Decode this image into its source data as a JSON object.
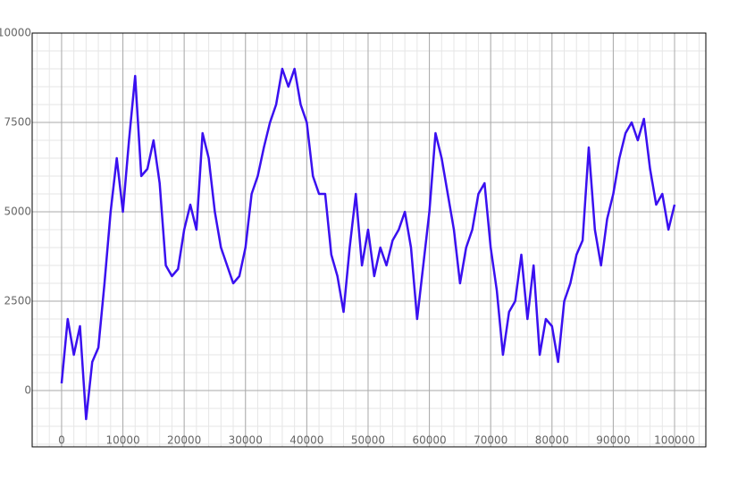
{
  "chart_data": {
    "type": "line",
    "color": "#3a10f0",
    "grid": true,
    "x": [
      0,
      1000,
      2000,
      3000,
      4000,
      5000,
      6000,
      7000,
      8000,
      9000,
      10000,
      11000,
      12000,
      13000,
      14000,
      15000,
      16000,
      17000,
      18000,
      19000,
      20000,
      21000,
      22000,
      23000,
      24000,
      25000,
      26000,
      27000,
      28000,
      29000,
      30000,
      31000,
      32000,
      33000,
      34000,
      35000,
      36000,
      37000,
      38000,
      39000,
      40000,
      41000,
      42000,
      43000,
      44000,
      45000,
      46000,
      47000,
      48000,
      49000,
      50000,
      51000,
      52000,
      53000,
      54000,
      55000,
      56000,
      57000,
      58000,
      59000,
      60000,
      61000,
      62000,
      63000,
      64000,
      65000,
      66000,
      67000,
      68000,
      69000,
      70000,
      71000,
      72000,
      73000,
      74000,
      75000,
      76000,
      77000,
      78000,
      79000,
      80000,
      81000,
      82000,
      83000,
      84000,
      85000,
      86000,
      87000,
      88000,
      89000,
      90000,
      91000,
      92000,
      93000,
      94000,
      95000,
      96000,
      97000,
      98000,
      99000,
      100000
    ],
    "values": [
      200,
      2000,
      1000,
      1800,
      -800,
      800,
      1200,
      3000,
      5000,
      6500,
      5000,
      7000,
      8800,
      6000,
      6200,
      7000,
      5800,
      3500,
      3200,
      3400,
      4500,
      5200,
      4500,
      7200,
      6500,
      5000,
      4000,
      3500,
      3000,
      3200,
      4000,
      5500,
      6000,
      6800,
      7500,
      8000,
      9000,
      8500,
      9000,
      8000,
      7500,
      6000,
      5500,
      5500,
      3800,
      3200,
      2200,
      4000,
      5500,
      3500,
      4500,
      3200,
      4000,
      3500,
      4200,
      4500,
      5000,
      4000,
      2000,
      3500,
      5000,
      7200,
      6500,
      5500,
      4500,
      3000,
      4000,
      4500,
      5500,
      5800,
      4000,
      2800,
      1000,
      2200,
      2500,
      3800,
      2000,
      3500,
      1000,
      2000,
      1800,
      800,
      2500,
      3000,
      3800,
      4200,
      6800,
      4500,
      3500,
      4800,
      5500,
      6500,
      7200,
      7500,
      7000,
      7600,
      6200,
      5200,
      5500,
      4500,
      5200
    ],
    "xlim": [
      -4800,
      105100
    ],
    "ylim": [
      -1575,
      10000
    ],
    "xticks": [
      0,
      10000,
      20000,
      30000,
      40000,
      50000,
      60000,
      70000,
      80000,
      90000,
      100000
    ],
    "yticks": [
      0,
      2500,
      5000,
      7500,
      10000
    ]
  }
}
